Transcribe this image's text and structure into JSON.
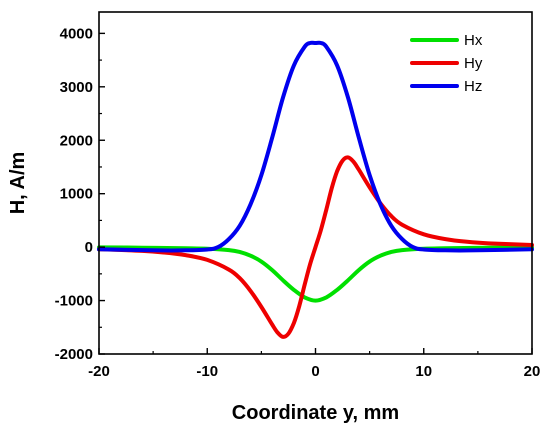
{
  "chart_data": {
    "type": "line",
    "xlabel": "Coordinate y, mm",
    "ylabel": "H, A/m",
    "xlim": [
      -20,
      20
    ],
    "ylim": [
      -2000,
      4400
    ],
    "xticks": [
      -20,
      -10,
      0,
      10,
      20
    ],
    "yticks": [
      -2000,
      -1000,
      0,
      1000,
      2000,
      3000,
      4000
    ],
    "grid": false,
    "legend_position": "top-right",
    "series": [
      {
        "name": "Hx",
        "color": "#00e000",
        "x": [
          -20,
          -16,
          -12,
          -10,
          -8,
          -7,
          -6,
          -5,
          -4,
          -3,
          -2,
          -1,
          0,
          1,
          2,
          3,
          4,
          5,
          6,
          7,
          8,
          10,
          12,
          16,
          20
        ],
        "y": [
          -5,
          -10,
          -20,
          -30,
          -55,
          -90,
          -160,
          -270,
          -430,
          -620,
          -800,
          -940,
          -1000,
          -940,
          -800,
          -620,
          -430,
          -270,
          -160,
          -90,
          -55,
          -30,
          -20,
          -10,
          -5
        ]
      },
      {
        "name": "Hy",
        "color": "#ee0000",
        "x": [
          -20,
          -16,
          -14,
          -12,
          -10,
          -8,
          -7,
          -6,
          -5,
          -4,
          -3.5,
          -3,
          -2.5,
          -2,
          -1.5,
          -1,
          -0.5,
          0,
          0.5,
          1,
          1.5,
          2,
          2.5,
          3,
          3.5,
          4,
          5,
          6,
          7,
          8,
          10,
          12,
          14,
          16,
          20
        ],
        "y": [
          -40,
          -70,
          -100,
          -150,
          -240,
          -420,
          -580,
          -820,
          -1120,
          -1450,
          -1600,
          -1680,
          -1620,
          -1420,
          -1100,
          -700,
          -320,
          0,
          320,
          700,
          1100,
          1420,
          1620,
          1680,
          1600,
          1450,
          1120,
          820,
          580,
          420,
          240,
          150,
          100,
          70,
          40
        ]
      },
      {
        "name": "Hz",
        "color": "#0000ee",
        "x": [
          -20,
          -15,
          -12,
          -10,
          -9,
          -8,
          -7,
          -6,
          -5,
          -4,
          -3,
          -2,
          -1,
          -0.5,
          0,
          0.5,
          1,
          2,
          3,
          4,
          5,
          6,
          7,
          8,
          9,
          10,
          12,
          15,
          20
        ],
        "y": [
          -40,
          -60,
          -60,
          -45,
          0,
          150,
          400,
          800,
          1350,
          2050,
          2800,
          3400,
          3750,
          3820,
          3820,
          3820,
          3750,
          3400,
          2800,
          2050,
          1350,
          800,
          400,
          150,
          0,
          -45,
          -60,
          -60,
          -40
        ]
      }
    ]
  }
}
